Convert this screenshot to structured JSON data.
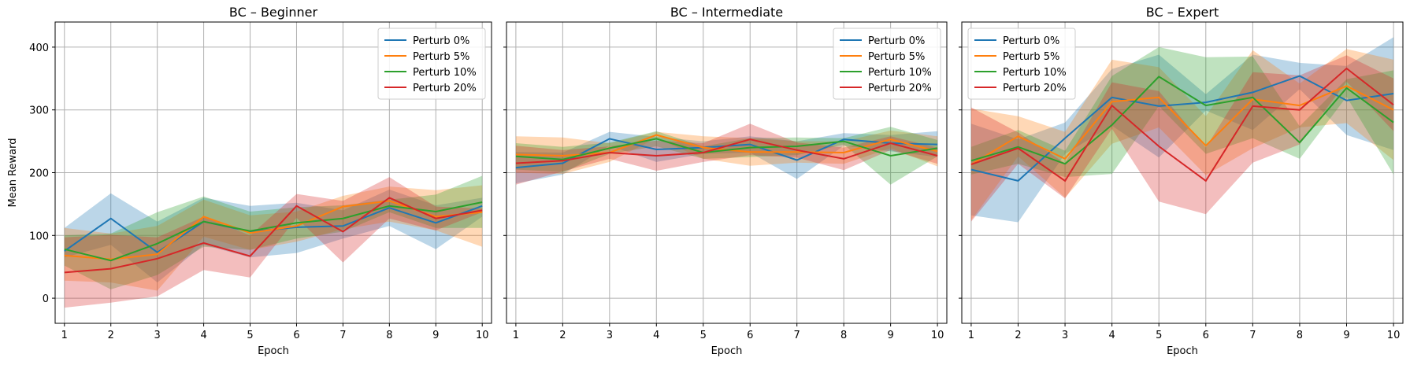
{
  "chart_data": [
    {
      "type": "line",
      "title": "BC – Beginner",
      "xlabel": "Epoch",
      "ylabel": "Mean Reward",
      "x": [
        1,
        2,
        3,
        4,
        5,
        6,
        7,
        8,
        9,
        10
      ],
      "xlim": [
        0.8,
        10.2
      ],
      "ylim": [
        -40,
        440
      ],
      "yticks": [
        0,
        100,
        200,
        300,
        400
      ],
      "grid": true,
      "legend_position": "top-right",
      "series": [
        {
          "name": "Perturb 0%",
          "color": "#1f77b4",
          "values": [
            75,
            127,
            73,
            122,
            106,
            113,
            115,
            144,
            120,
            147
          ],
          "upper": [
            112,
            167,
            122,
            160,
            147,
            152,
            140,
            173,
            148,
            160
          ],
          "lower": [
            65,
            85,
            25,
            85,
            65,
            72,
            95,
            115,
            78,
            130
          ]
        },
        {
          "name": "Perturb 5%",
          "color": "#ff7f0e",
          "values": [
            68,
            62,
            70,
            130,
            104,
            115,
            146,
            155,
            130,
            137
          ],
          "upper": [
            112,
            103,
            115,
            157,
            132,
            138,
            163,
            178,
            172,
            180
          ],
          "lower": [
            28,
            25,
            12,
            98,
            77,
            90,
            110,
            122,
            108,
            82
          ]
        },
        {
          "name": "Perturb 10%",
          "color": "#2ca02c",
          "values": [
            78,
            60,
            87,
            122,
            107,
            120,
            127,
            147,
            138,
            153
          ],
          "upper": [
            100,
            103,
            137,
            162,
            138,
            145,
            148,
            157,
            165,
            195
          ],
          "lower": [
            52,
            14,
            37,
            82,
            77,
            95,
            106,
            137,
            112,
            112
          ]
        },
        {
          "name": "Perturb 20%",
          "color": "#d62728",
          "values": [
            41,
            47,
            63,
            88,
            67,
            147,
            106,
            160,
            127,
            140
          ],
          "upper": [
            97,
            101,
            97,
            130,
            100,
            166,
            155,
            193,
            146,
            143
          ],
          "lower": [
            -15,
            -7,
            3,
            45,
            33,
            128,
            57,
            127,
            108,
            137
          ]
        }
      ]
    },
    {
      "type": "line",
      "title": "BC – Intermediate",
      "xlabel": "Epoch",
      "ylabel": "",
      "x": [
        1,
        2,
        3,
        4,
        5,
        6,
        7,
        8,
        9,
        10
      ],
      "xlim": [
        0.8,
        10.2
      ],
      "ylim": [
        -40,
        440
      ],
      "yticks": [
        0,
        100,
        200,
        300,
        400
      ],
      "grid": true,
      "legend_position": "top-right",
      "series": [
        {
          "name": "Perturb 0%",
          "color": "#1f77b4",
          "values": [
            208,
            215,
            254,
            237,
            240,
            245,
            220,
            253,
            247,
            245
          ],
          "upper": [
            233,
            232,
            265,
            257,
            250,
            258,
            250,
            263,
            260,
            266
          ],
          "lower": [
            183,
            197,
            243,
            217,
            230,
            232,
            190,
            243,
            234,
            225
          ]
        },
        {
          "name": "Perturb 5%",
          "color": "#ff7f0e",
          "values": [
            229,
            227,
            232,
            260,
            240,
            233,
            233,
            232,
            253,
            234
          ],
          "upper": [
            258,
            256,
            247,
            265,
            258,
            255,
            250,
            250,
            267,
            258
          ],
          "lower": [
            200,
            198,
            217,
            255,
            222,
            211,
            216,
            214,
            239,
            210
          ]
        },
        {
          "name": "Perturb 10%",
          "color": "#2ca02c",
          "values": [
            226,
            221,
            239,
            254,
            232,
            240,
            242,
            250,
            227,
            239
          ],
          "upper": [
            247,
            241,
            248,
            266,
            242,
            255,
            256,
            255,
            273,
            252
          ],
          "lower": [
            205,
            201,
            230,
            242,
            222,
            225,
            228,
            245,
            181,
            226
          ]
        },
        {
          "name": "Perturb 20%",
          "color": "#d62728",
          "values": [
            215,
            219,
            232,
            227,
            232,
            253,
            236,
            222,
            247,
            227
          ],
          "upper": [
            243,
            236,
            242,
            251,
            247,
            278,
            248,
            240,
            258,
            240
          ],
          "lower": [
            181,
            202,
            222,
            203,
            217,
            228,
            224,
            204,
            236,
            214
          ]
        }
      ]
    },
    {
      "type": "line",
      "title": "BC – Expert",
      "xlabel": "Epoch",
      "ylabel": "",
      "x": [
        1,
        2,
        3,
        4,
        5,
        6,
        7,
        8,
        9,
        10
      ],
      "xlim": [
        0.8,
        10.2
      ],
      "ylim": [
        -40,
        440
      ],
      "yticks": [
        0,
        100,
        200,
        300,
        400
      ],
      "grid": true,
      "legend_position": "top-left",
      "series": [
        {
          "name": "Perturb 0%",
          "color": "#1f77b4",
          "values": [
            205,
            187,
            255,
            320,
            306,
            312,
            328,
            354,
            315,
            326
          ],
          "upper": [
            278,
            253,
            280,
            365,
            388,
            325,
            388,
            375,
            370,
            416
          ],
          "lower": [
            132,
            121,
            230,
            275,
            224,
            299,
            268,
            333,
            260,
            236
          ]
        },
        {
          "name": "Perturb 5%",
          "color": "#ff7f0e",
          "values": [
            213,
            258,
            222,
            313,
            320,
            243,
            317,
            307,
            338,
            300
          ],
          "upper": [
            302,
            290,
            265,
            380,
            368,
            290,
            395,
            342,
            397,
            380
          ],
          "lower": [
            124,
            226,
            160,
            246,
            272,
            196,
            239,
            272,
            279,
            220
          ]
        },
        {
          "name": "Perturb 10%",
          "color": "#2ca02c",
          "values": [
            219,
            241,
            214,
            276,
            353,
            307,
            320,
            248,
            335,
            280
          ],
          "upper": [
            241,
            268,
            235,
            354,
            400,
            384,
            385,
            274,
            349,
            363
          ],
          "lower": [
            197,
            214,
            193,
            198,
            306,
            230,
            255,
            222,
            321,
            197
          ]
        },
        {
          "name": "Perturb 20%",
          "color": "#d62728",
          "values": [
            213,
            239,
            187,
            307,
            242,
            187,
            306,
            300,
            366,
            308
          ],
          "upper": [
            304,
            264,
            215,
            344,
            330,
            240,
            360,
            355,
            387,
            350
          ],
          "lower": [
            122,
            214,
            159,
            270,
            154,
            134,
            216,
            245,
            345,
            266
          ]
        }
      ]
    }
  ]
}
